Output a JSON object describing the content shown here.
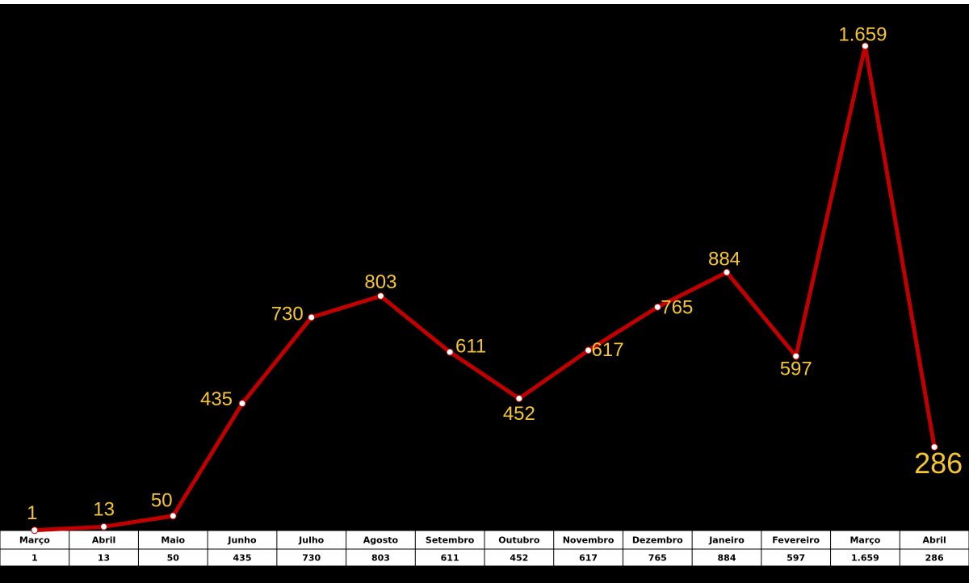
{
  "chart_data": {
    "type": "line",
    "categories": [
      "Março",
      "Abril",
      "Maio",
      "Junho",
      "Julho",
      "Agosto",
      "Setembro",
      "Outubro",
      "Novembro",
      "Dezembro",
      "Janeiro",
      "Fevereiro",
      "Março",
      "Abril"
    ],
    "values": [
      1,
      13,
      50,
      435,
      730,
      803,
      611,
      452,
      617,
      765,
      884,
      597,
      1659,
      286
    ],
    "value_labels": [
      "1",
      "13",
      "50",
      "435",
      "730",
      "803",
      "611",
      "452",
      "617",
      "765",
      "884",
      "597",
      "1.659",
      "286"
    ],
    "color": "#c00000"
  }
}
